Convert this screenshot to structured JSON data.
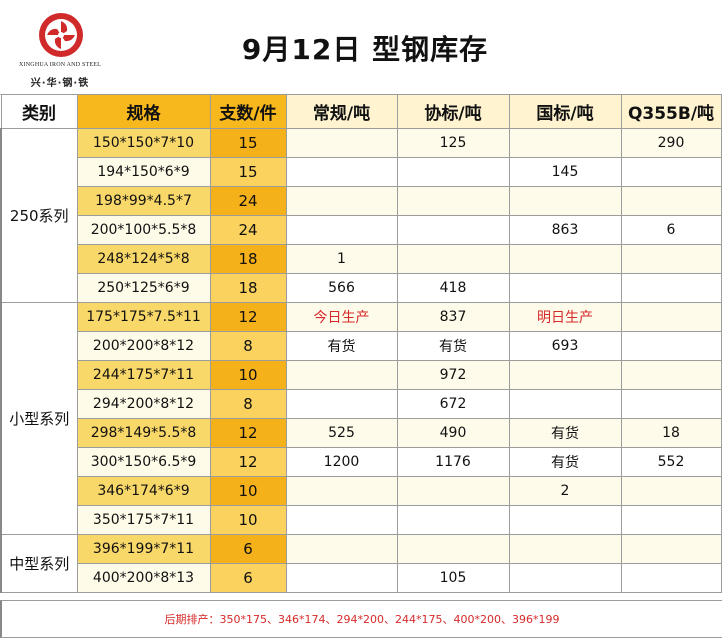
{
  "brand": {
    "name_en": "XINGHUA IRON AND STEEL",
    "name_cn": "兴·华·钢·铁",
    "logo_color": "#d12a2a"
  },
  "title": "9月12日 型钢库存",
  "headers": {
    "category": "类别",
    "spec": "规格",
    "qty": "支数/件",
    "regular": "常规/吨",
    "association": "协标/吨",
    "national": "国标/吨",
    "q355b": "Q355B/吨"
  },
  "categories": [
    {
      "name": "250系列",
      "rows": [
        {
          "spec": "150*150*7*10",
          "qty": "15",
          "regular": "",
          "association": "125",
          "national": "",
          "q355b": "290"
        },
        {
          "spec": "194*150*6*9",
          "qty": "15",
          "regular": "",
          "association": "",
          "national": "145",
          "q355b": ""
        },
        {
          "spec": "198*99*4.5*7",
          "qty": "24",
          "regular": "",
          "association": "",
          "national": "",
          "q355b": ""
        },
        {
          "spec": "200*100*5.5*8",
          "qty": "24",
          "regular": "",
          "association": "",
          "national": "863",
          "q355b": "6"
        },
        {
          "spec": "248*124*5*8",
          "qty": "18",
          "regular": "1",
          "association": "",
          "national": "",
          "q355b": ""
        },
        {
          "spec": "250*125*6*9",
          "qty": "18",
          "regular": "566",
          "association": "418",
          "national": "",
          "q355b": ""
        }
      ]
    },
    {
      "name": "小型系列",
      "rows": [
        {
          "spec": "175*175*7.5*11",
          "qty": "12",
          "regular": "今日生产",
          "association": "837",
          "national": "明日生产",
          "q355b": ""
        },
        {
          "spec": "200*200*8*12",
          "qty": "8",
          "regular": "有货",
          "association": "有货",
          "national": "693",
          "q355b": ""
        },
        {
          "spec": "244*175*7*11",
          "qty": "10",
          "regular": "",
          "association": "972",
          "national": "",
          "q355b": ""
        },
        {
          "spec": "294*200*8*12",
          "qty": "8",
          "regular": "",
          "association": "672",
          "national": "",
          "q355b": ""
        },
        {
          "spec": "298*149*5.5*8",
          "qty": "12",
          "regular": "525",
          "association": "490",
          "national": "有货",
          "q355b": "18"
        },
        {
          "spec": "300*150*6.5*9",
          "qty": "12",
          "regular": "1200",
          "association": "1176",
          "national": "有货",
          "q355b": "552"
        },
        {
          "spec": "346*174*6*9",
          "qty": "10",
          "regular": "",
          "association": "",
          "national": "2",
          "q355b": ""
        },
        {
          "spec": "350*175*7*11",
          "qty": "10",
          "regular": "",
          "association": "",
          "national": "",
          "q355b": ""
        }
      ]
    },
    {
      "name": "中型系列",
      "rows": [
        {
          "spec": "396*199*7*11",
          "qty": "6",
          "regular": "",
          "association": "",
          "national": "",
          "q355b": ""
        },
        {
          "spec": "400*200*8*13",
          "qty": "6",
          "regular": "",
          "association": "105",
          "national": "",
          "q355b": ""
        }
      ]
    }
  ],
  "red_values": [
    "今日生产",
    "明日生产"
  ],
  "footer": {
    "text": "后期排产：350*175、346*174、294*200、244*175、400*200、396*199"
  }
}
